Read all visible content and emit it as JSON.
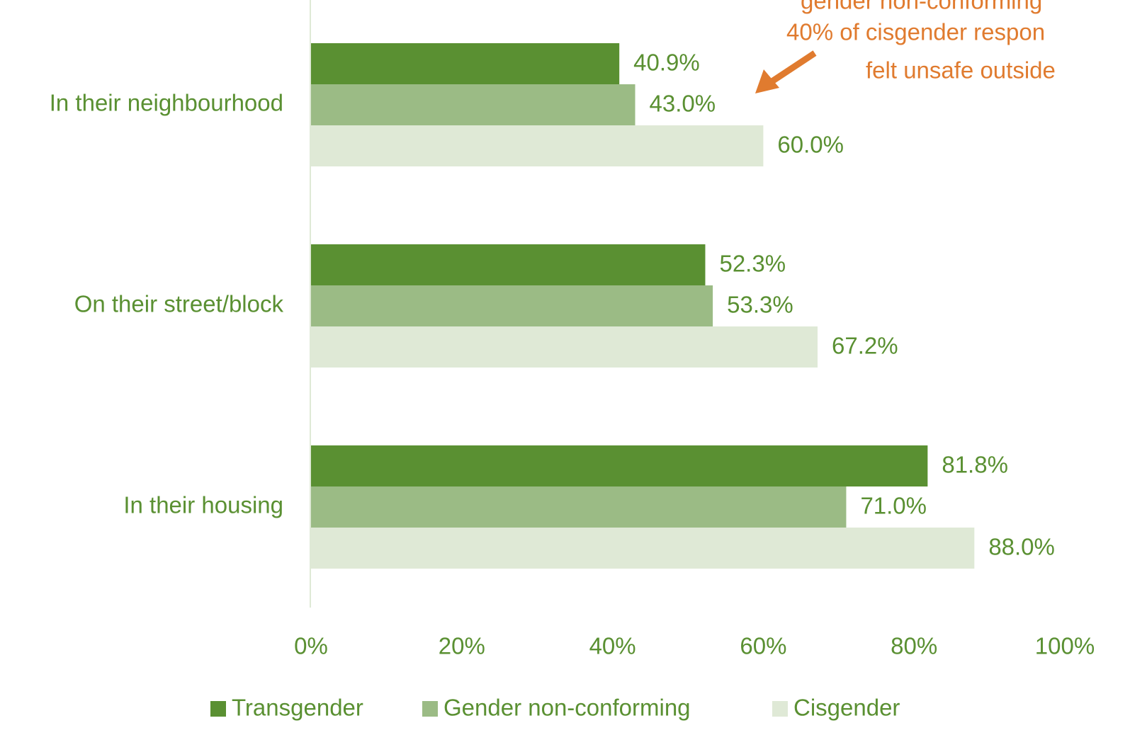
{
  "chart_data": {
    "type": "bar",
    "orientation": "horizontal",
    "categories": [
      "In their neighbourhood",
      "On their street/block",
      "In their housing"
    ],
    "series": [
      {
        "name": "Transgender",
        "color": "#5a9032",
        "values": [
          40.9,
          52.3,
          81.8
        ],
        "value_labels": [
          "40.9%",
          "52.3%",
          "81.8%"
        ]
      },
      {
        "name": "Gender non-conforming",
        "color": "#9bbb85",
        "values": [
          43.0,
          53.3,
          71.0
        ],
        "value_labels": [
          "43.0%",
          "53.3%",
          "71.0%"
        ]
      },
      {
        "name": "Cisgender",
        "color": "#dfe9d6",
        "values": [
          60.0,
          67.2,
          88.0
        ],
        "value_labels": [
          "60.0%",
          "67.2%",
          "88.0%"
        ]
      }
    ],
    "xlim": [
      0,
      100
    ],
    "xticks": [
      {
        "value": 0,
        "label": "0%"
      },
      {
        "value": 20,
        "label": "20%"
      },
      {
        "value": 40,
        "label": "40%"
      },
      {
        "value": 60,
        "label": "60%"
      },
      {
        "value": 80,
        "label": "80%"
      },
      {
        "value": 100,
        "label": "100%"
      }
    ],
    "annotation": [
      "gender non-conforming",
      "40% of cisgender respon",
      "felt unsafe outside"
    ],
    "annotation_color": "#e07b2f",
    "legend": "bottom"
  }
}
